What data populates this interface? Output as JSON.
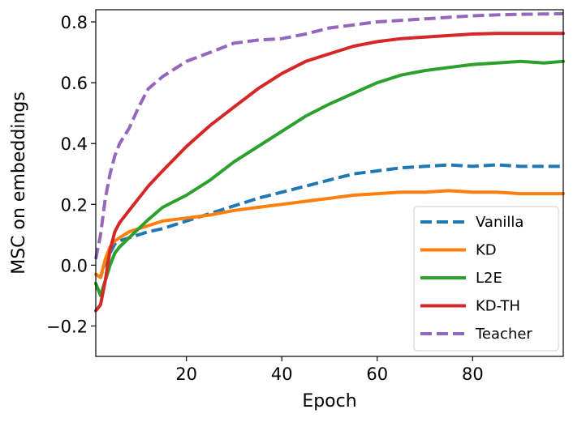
{
  "chart_data": {
    "type": "line",
    "title": "",
    "xlabel": "Epoch",
    "ylabel": "MSC on embeddings",
    "xlim": [
      1,
      99
    ],
    "ylim": [
      -0.3,
      0.84
    ],
    "xticks": [
      20,
      40,
      60,
      80
    ],
    "xtick_labels": [
      "20",
      "40",
      "60",
      "80"
    ],
    "yticks": [
      -0.2,
      0.0,
      0.2,
      0.4,
      0.6,
      0.8
    ],
    "ytick_labels": [
      "−0.2",
      "0.0",
      "0.2",
      "0.4",
      "0.6",
      "0.8"
    ],
    "grid": false,
    "legend_position": "bottom-right",
    "series": [
      {
        "name": "Vanilla",
        "color": "#1f77b4",
        "style": "dashed",
        "x": [
          1,
          2,
          3,
          4,
          5,
          6,
          8,
          10,
          12,
          15,
          20,
          25,
          30,
          35,
          40,
          45,
          50,
          55,
          60,
          65,
          70,
          75,
          80,
          85,
          90,
          95,
          99
        ],
        "y": [
          -0.03,
          -0.04,
          0.01,
          0.04,
          0.07,
          0.08,
          0.09,
          0.1,
          0.11,
          0.12,
          0.145,
          0.17,
          0.195,
          0.22,
          0.24,
          0.26,
          0.28,
          0.3,
          0.31,
          0.32,
          0.325,
          0.33,
          0.325,
          0.33,
          0.325,
          0.325,
          0.325
        ]
      },
      {
        "name": "KD",
        "color": "#ff7f0e",
        "style": "solid",
        "x": [
          1,
          2,
          3,
          4,
          5,
          6,
          8,
          10,
          12,
          15,
          20,
          25,
          30,
          35,
          40,
          45,
          50,
          55,
          60,
          65,
          70,
          75,
          80,
          85,
          90,
          95,
          99
        ],
        "y": [
          -0.03,
          -0.04,
          0.02,
          0.06,
          0.08,
          0.09,
          0.11,
          0.12,
          0.13,
          0.145,
          0.155,
          0.165,
          0.18,
          0.19,
          0.2,
          0.21,
          0.22,
          0.23,
          0.235,
          0.24,
          0.24,
          0.245,
          0.24,
          0.24,
          0.235,
          0.235,
          0.235
        ]
      },
      {
        "name": "L2E",
        "color": "#2ca02c",
        "style": "solid",
        "x": [
          1,
          2,
          3,
          4,
          5,
          6,
          8,
          10,
          12,
          15,
          20,
          25,
          30,
          35,
          40,
          45,
          50,
          55,
          60,
          65,
          70,
          75,
          80,
          85,
          90,
          95,
          99
        ],
        "y": [
          -0.06,
          -0.1,
          -0.05,
          0.0,
          0.04,
          0.06,
          0.09,
          0.12,
          0.15,
          0.19,
          0.23,
          0.28,
          0.34,
          0.39,
          0.44,
          0.49,
          0.53,
          0.565,
          0.6,
          0.625,
          0.64,
          0.65,
          0.66,
          0.665,
          0.67,
          0.665,
          0.67
        ]
      },
      {
        "name": "KD-TH",
        "color": "#d62728",
        "style": "solid",
        "x": [
          1,
          2,
          3,
          4,
          5,
          6,
          8,
          10,
          12,
          15,
          20,
          25,
          30,
          35,
          40,
          45,
          50,
          55,
          60,
          65,
          70,
          75,
          80,
          85,
          90,
          95,
          99
        ],
        "y": [
          -0.15,
          -0.13,
          -0.05,
          0.05,
          0.11,
          0.14,
          0.18,
          0.22,
          0.26,
          0.31,
          0.39,
          0.46,
          0.52,
          0.58,
          0.63,
          0.67,
          0.695,
          0.72,
          0.735,
          0.745,
          0.75,
          0.755,
          0.76,
          0.762,
          0.762,
          0.762,
          0.762
        ]
      },
      {
        "name": "Teacher",
        "color": "#9467bd",
        "style": "dashed",
        "x": [
          1,
          2,
          3,
          4,
          5,
          6,
          8,
          10,
          12,
          15,
          20,
          25,
          30,
          35,
          40,
          45,
          50,
          55,
          60,
          65,
          70,
          75,
          80,
          85,
          90,
          95,
          99
        ],
        "y": [
          0.02,
          0.1,
          0.22,
          0.3,
          0.36,
          0.4,
          0.45,
          0.52,
          0.58,
          0.62,
          0.67,
          0.7,
          0.73,
          0.74,
          0.745,
          0.76,
          0.78,
          0.79,
          0.8,
          0.805,
          0.81,
          0.815,
          0.82,
          0.823,
          0.825,
          0.826,
          0.827
        ]
      }
    ]
  }
}
